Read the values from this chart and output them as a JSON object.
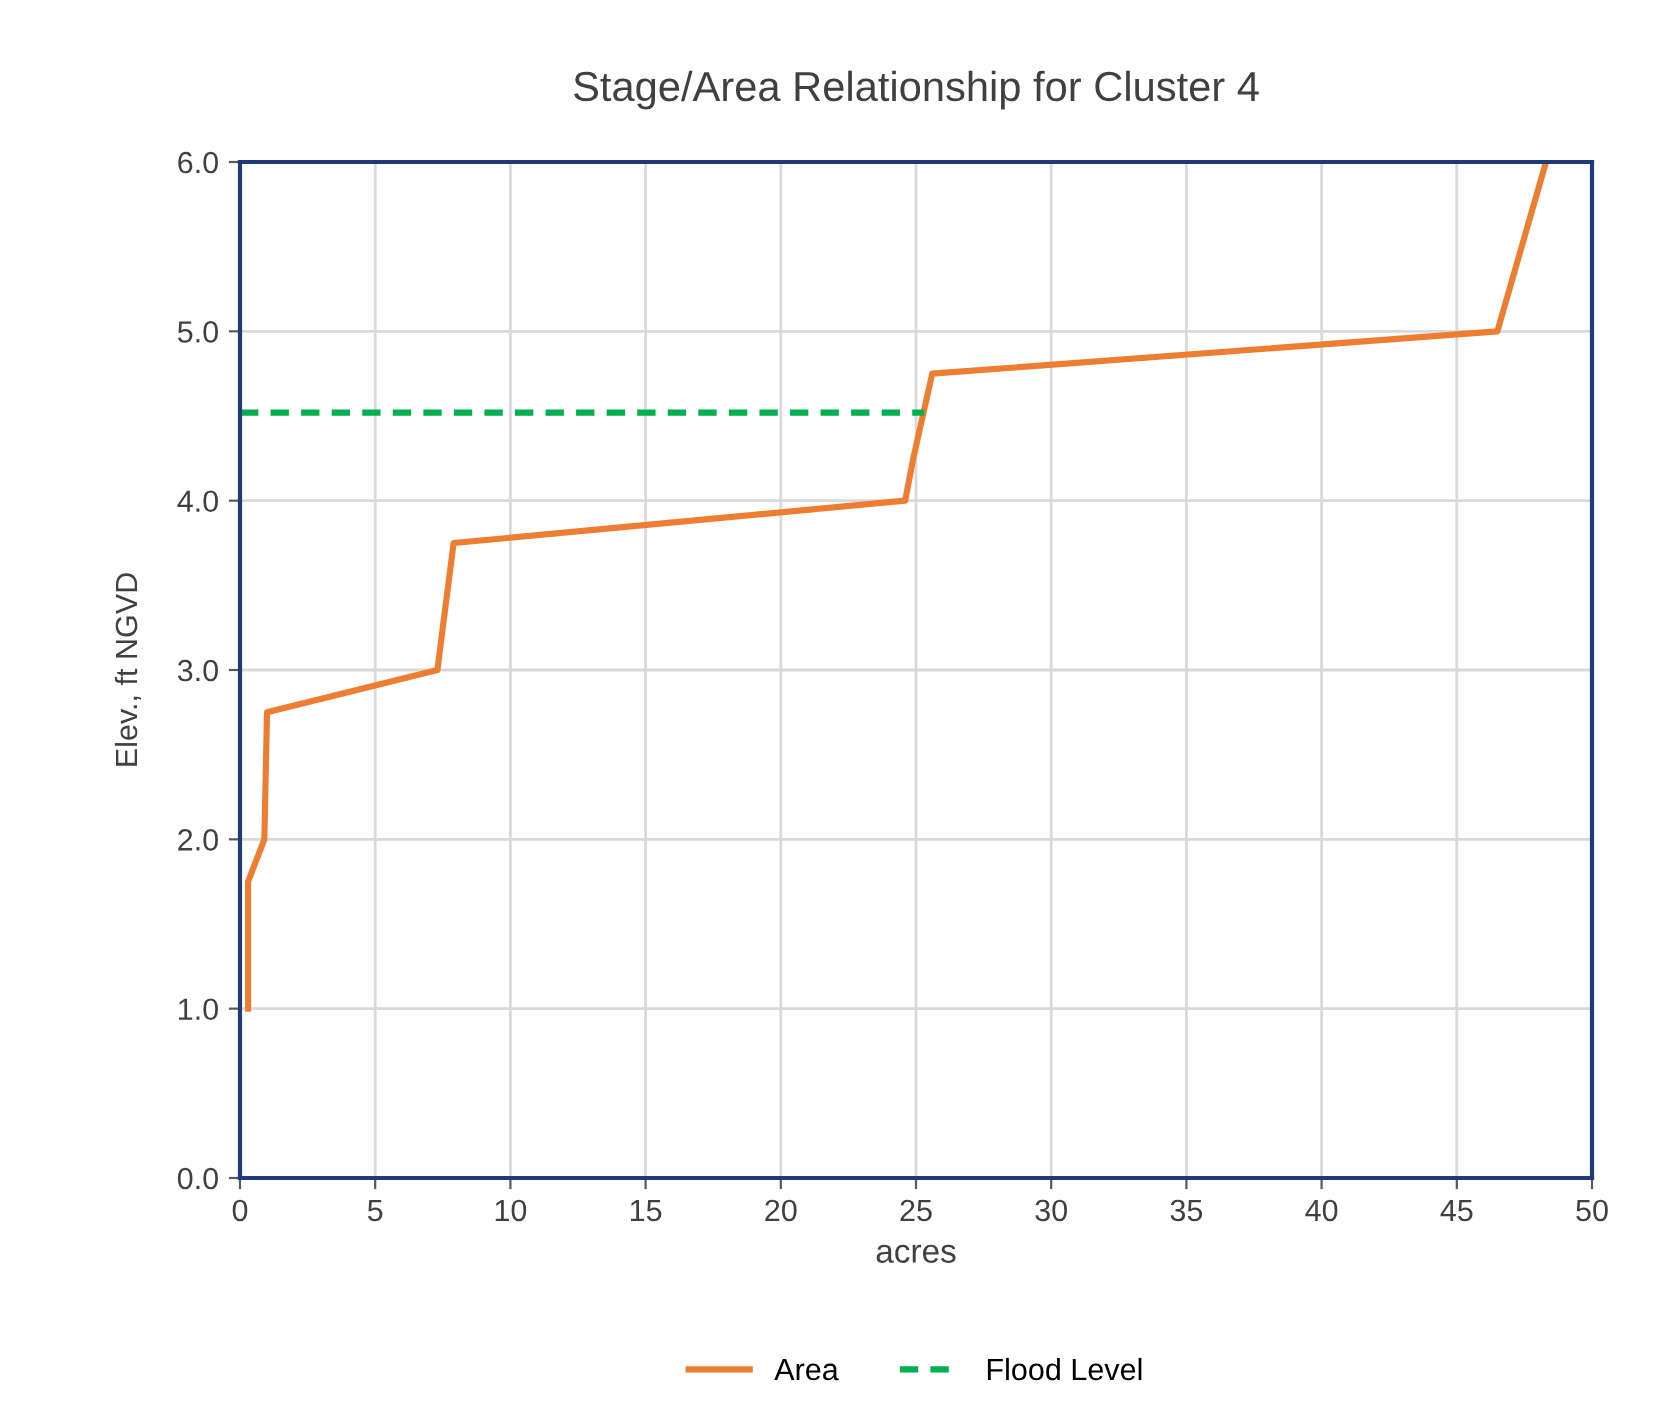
{
  "chart_data": {
    "type": "line",
    "title": "Stage/Area Relationship for Cluster 4",
    "xlabel": "acres",
    "ylabel": "Elev., ft NGVD",
    "series": [
      {
        "name": "Area",
        "color": "#ed7d31",
        "line_style": "solid",
        "x": [
          0.3,
          0.3,
          0.9,
          1.0,
          7.3,
          7.5,
          7.9,
          24.6,
          24.9,
          25.6,
          46.5,
          48.3
        ],
        "values": [
          1.0,
          1.75,
          2.0,
          2.75,
          3.0,
          3.25,
          3.75,
          4.0,
          4.25,
          4.75,
          5.0,
          6.0
        ]
      },
      {
        "name": "Flood Level",
        "color": "#00b050",
        "line_style": "dashed",
        "x": [
          0,
          25.3
        ],
        "values": [
          4.52,
          4.52
        ]
      }
    ],
    "xlim": [
      0,
      50
    ],
    "xticks": [
      0,
      5,
      10,
      15,
      20,
      25,
      30,
      35,
      40,
      45,
      50
    ],
    "ylim": [
      0,
      6
    ],
    "yticks": [
      {
        "value": 0,
        "label": "0.0"
      },
      {
        "value": 1,
        "label": "1.0"
      },
      {
        "value": 2,
        "label": "2.0"
      },
      {
        "value": 3,
        "label": "3.0"
      },
      {
        "value": 4,
        "label": "4.0"
      },
      {
        "value": 5,
        "label": "5.0"
      },
      {
        "value": 6,
        "label": "6.0"
      }
    ],
    "grid": true,
    "legend": "bottom",
    "marker": "none"
  }
}
